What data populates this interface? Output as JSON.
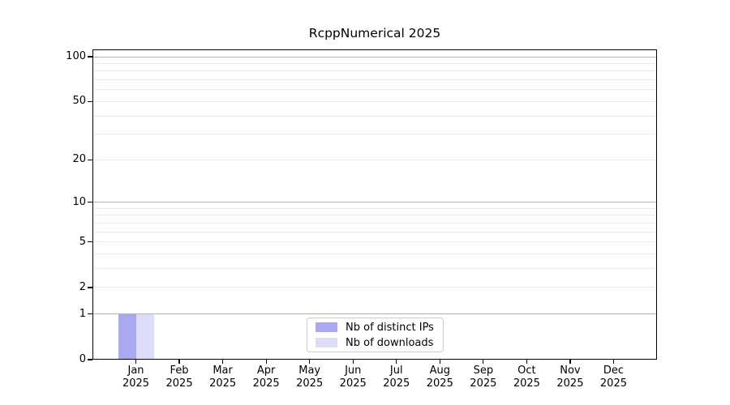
{
  "chart_data": {
    "type": "bar",
    "title": "RcppNumerical 2025",
    "categories": [
      "Jan 2025",
      "Feb 2025",
      "Mar 2025",
      "Apr 2025",
      "May 2025",
      "Jun 2025",
      "Jul 2025",
      "Aug 2025",
      "Sep 2025",
      "Oct 2025",
      "Nov 2025",
      "Dec 2025"
    ],
    "series": [
      {
        "name": "Nb of distinct IPs",
        "color": "#a9a9f2",
        "values": [
          1,
          0,
          0,
          0,
          0,
          0,
          0,
          0,
          0,
          0,
          0,
          0
        ]
      },
      {
        "name": "Nb of downloads",
        "color": "#dcdcf8",
        "values": [
          1,
          0,
          0,
          0,
          0,
          0,
          0,
          0,
          0,
          0,
          0,
          0
        ]
      }
    ],
    "yscale": "log1p",
    "y_axis": {
      "tick_values": [
        0,
        1,
        2,
        5,
        10,
        20,
        50,
        100
      ],
      "tick_labels": [
        "0",
        "1",
        "2",
        "5",
        "10",
        "20",
        "50",
        "100"
      ],
      "major_gridlines": [
        1,
        10,
        100
      ],
      "minor_gridlines": [
        2,
        3,
        4,
        5,
        6,
        7,
        8,
        9,
        20,
        30,
        40,
        50,
        60,
        70,
        80,
        90
      ]
    },
    "legend": {
      "position": "lower center"
    },
    "colors": {
      "major_grid": "#b2b2b2",
      "minor_grid": "#e9e9e9",
      "axis": "#000000",
      "background": "#ffffff"
    }
  }
}
